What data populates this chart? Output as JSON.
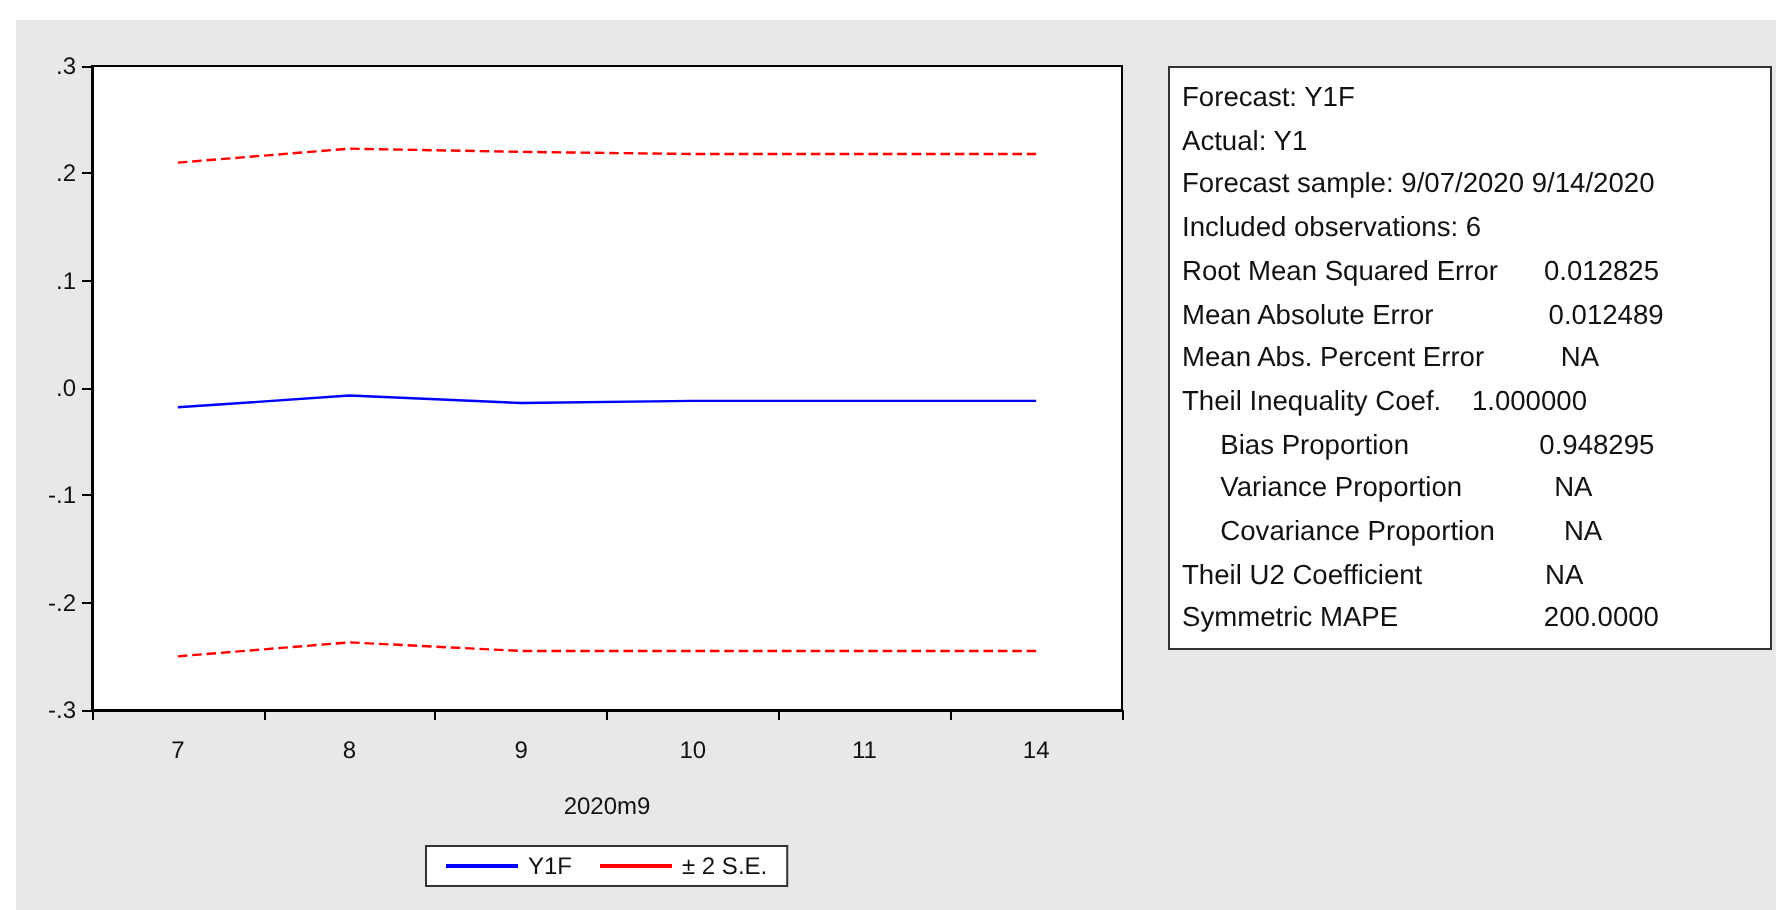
{
  "chart_data": [
    {
      "type": "line",
      "xlabel": "2020m9",
      "categories": [
        "7",
        "8",
        "9",
        "10",
        "11",
        "14"
      ],
      "series": [
        {
          "name": "Y1F",
          "color": "#0000ff",
          "line_style": "solid",
          "values": [
            -0.018,
            -0.007,
            -0.014,
            -0.012,
            -0.012,
            -0.012
          ]
        },
        {
          "name": "± 2 S.E.",
          "color": "#ff0000",
          "line_style": "dashed",
          "values": [
            0.21,
            0.223,
            0.22,
            0.218,
            0.218,
            0.218
          ]
        },
        {
          "color": "#ff0000",
          "line_style": "dashed",
          "values": [
            -0.25,
            -0.237,
            -0.245,
            -0.245,
            -0.245,
            -0.245
          ]
        }
      ],
      "ylim": [
        -0.3,
        0.3
      ],
      "yticks": [
        {
          "value": -0.3,
          "label": "-.3"
        },
        {
          "value": -0.2,
          "label": "-.2"
        },
        {
          "value": -0.1,
          "label": "-.1"
        },
        {
          "value": 0,
          "label": ".0"
        },
        {
          "value": 0.1,
          "label": ".1"
        },
        {
          "value": 0.2,
          "label": ".2"
        },
        {
          "value": 0.3,
          "label": ".3"
        }
      ],
      "grid": false,
      "legend": "bottom",
      "marker": "none"
    },
    {
      "type": "other",
      "annotations": [
        "Forecast: Y1F",
        "Actual: Y1",
        "Forecast sample: 9/07/2020 9/14/2020",
        "Included observations: 6",
        "Root Mean Squared Error      0.012825",
        "Mean Absolute Error               0.012489",
        "Mean Abs. Percent Error          NA",
        "Theil Inequality Coef.    1.000000",
        "     Bias Proportion                 0.948295",
        "     Variance Proportion            NA",
        "     Covariance Proportion         NA",
        "Theil U2 Coefficient                NA",
        "Symmetric MAPE                   200.0000"
      ]
    }
  ]
}
